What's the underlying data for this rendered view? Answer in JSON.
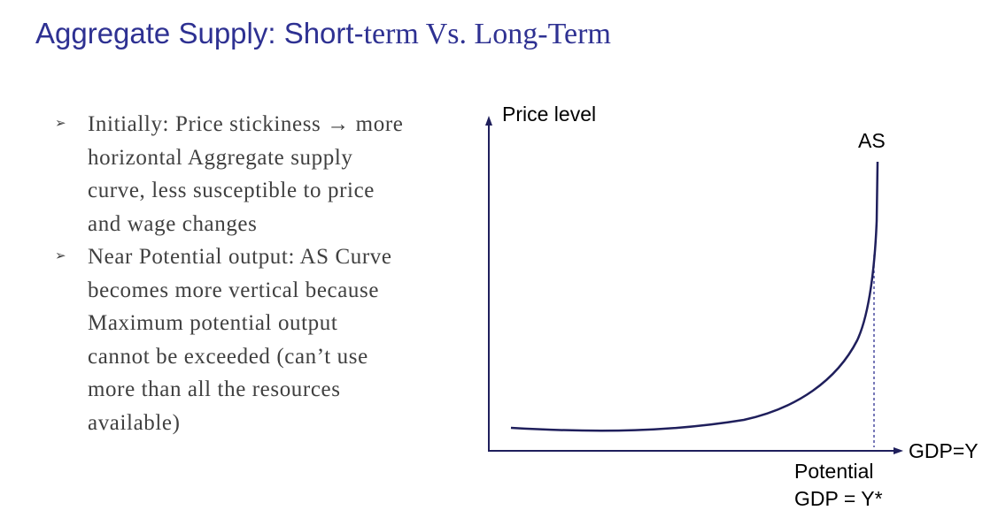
{
  "title": {
    "part1": "Aggregate Supply: Short-",
    "part2": "term Vs. Long-Term"
  },
  "bullets": [
    {
      "marker": "➢",
      "lines": [
        "Initially: Price stickiness → more",
        "horizontal Aggregate supply",
        "curve, less susceptible to price",
        "and wage changes"
      ]
    },
    {
      "marker": "➢",
      "lines": [
        "Near Potential output: AS Curve",
        "becomes more vertical because",
        "Maximum potential output",
        "cannot be exceeded (can’t use",
        "more than all the resources",
        "available)"
      ]
    }
  ],
  "diagram": {
    "y_axis_label": "Price level",
    "x_axis_label": "GDP=Y",
    "curve_label": "AS",
    "potential_label_line1": "Potential",
    "potential_label_line2": "GDP = Y*",
    "colors": {
      "curve": "#1f1f5c",
      "axes": "#1f1f5c",
      "dashed_line": "#2e3192"
    }
  }
}
